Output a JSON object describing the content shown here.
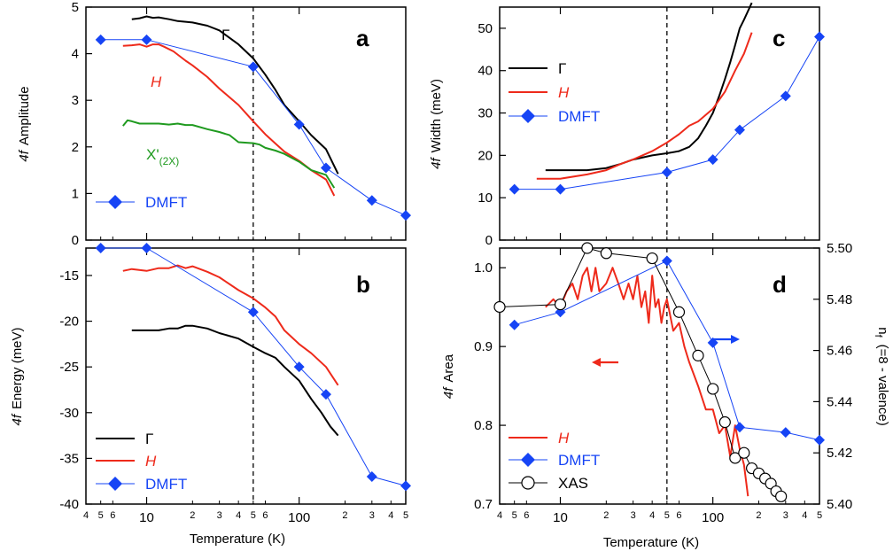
{
  "colors": {
    "black": "#000000",
    "red": "#ee2a1b",
    "blue": "#1644f5",
    "green": "#1f9a1f",
    "marker": "#1644f5"
  },
  "x_axis": {
    "label": "Temperature (K)",
    "major_ticks": [
      "10",
      "100"
    ],
    "minor_ticks": [
      "4",
      "5",
      "6",
      "2",
      "3",
      "4",
      "5",
      "6",
      "2",
      "3",
      "4",
      "5"
    ]
  },
  "chart_data": [
    {
      "id": "a",
      "type": "line",
      "panel_label": "a",
      "xscale": "log",
      "xlim": [
        4,
        500
      ],
      "ylabel_italic": "4f",
      "ylabel": "Amplitude",
      "ylim": [
        0,
        5
      ],
      "yticks": [
        "0",
        "1",
        "2",
        "3",
        "4",
        "5"
      ],
      "vline_x": 50,
      "series": [
        {
          "name": "Γ",
          "color": "black",
          "x": [
            8,
            9,
            10,
            11,
            12,
            14,
            16,
            20,
            25,
            30,
            40,
            50,
            60,
            70,
            80,
            100,
            120,
            150,
            180
          ],
          "y": [
            4.74,
            4.76,
            4.8,
            4.77,
            4.78,
            4.74,
            4.7,
            4.67,
            4.6,
            4.5,
            4.2,
            3.9,
            3.55,
            3.22,
            2.9,
            2.55,
            2.25,
            1.95,
            1.42
          ]
        },
        {
          "name": "H",
          "color": "red",
          "x": [
            7,
            8,
            9,
            10,
            11,
            12,
            13,
            15,
            18,
            20,
            25,
            30,
            40,
            50,
            60,
            70,
            80,
            100,
            120,
            150,
            170
          ],
          "y": [
            4.17,
            4.18,
            4.2,
            4.15,
            4.2,
            4.2,
            4.15,
            4.05,
            3.85,
            3.75,
            3.5,
            3.25,
            2.9,
            2.55,
            2.27,
            2.07,
            1.9,
            1.7,
            1.5,
            1.3,
            0.95
          ]
        },
        {
          "name": "X'",
          "subscript": "(2X)",
          "color": "green",
          "x": [
            7,
            7.5,
            8,
            9,
            10,
            12,
            14,
            16,
            18,
            20,
            25,
            30,
            35,
            40,
            50,
            55,
            60,
            70,
            80,
            100,
            120,
            150,
            170
          ],
          "y": [
            2.45,
            2.57,
            2.55,
            2.5,
            2.5,
            2.5,
            2.48,
            2.5,
            2.47,
            2.47,
            2.38,
            2.32,
            2.25,
            2.1,
            2.08,
            2.05,
            1.98,
            1.92,
            1.85,
            1.68,
            1.5,
            1.4,
            1.12
          ]
        },
        {
          "name": "DMFT",
          "color": "blue",
          "marker": "diamond",
          "x": [
            5,
            10,
            50,
            100,
            150,
            300,
            500
          ],
          "y": [
            4.3,
            4.3,
            3.72,
            2.48,
            1.55,
            0.85,
            0.53
          ]
        }
      ]
    },
    {
      "id": "b",
      "type": "line",
      "panel_label": "b",
      "xscale": "log",
      "xlim": [
        4,
        500
      ],
      "ylabel_italic": "4f",
      "ylabel": "Energy (meV)",
      "ylim": [
        -40,
        -12
      ],
      "yticks": [
        "-40",
        "-35",
        "-30",
        "-25",
        "-20",
        "-15"
      ],
      "vline_x": 50,
      "series": [
        {
          "name": "Γ",
          "color": "black",
          "x": [
            8,
            10,
            12,
            14,
            16,
            18,
            20,
            25,
            30,
            40,
            50,
            60,
            70,
            80,
            100,
            120,
            140,
            160,
            180
          ],
          "y": [
            -21,
            -21,
            -21,
            -20.8,
            -20.8,
            -20.5,
            -20.5,
            -20.8,
            -21.3,
            -21.9,
            -22.8,
            -23.5,
            -24,
            -25,
            -26.5,
            -28.5,
            -30,
            -31.5,
            -32.5
          ]
        },
        {
          "name": "H",
          "color": "red",
          "x": [
            7,
            8,
            10,
            12,
            14,
            16,
            18,
            20,
            25,
            30,
            40,
            50,
            60,
            70,
            80,
            100,
            120,
            150,
            180
          ],
          "y": [
            -14.5,
            -14.3,
            -14.5,
            -14.2,
            -14.2,
            -13.9,
            -14.2,
            -14,
            -14.6,
            -15.2,
            -16.6,
            -17.5,
            -18.5,
            -19.5,
            -21,
            -22.5,
            -23.5,
            -25,
            -27
          ]
        },
        {
          "name": "DMFT",
          "color": "blue",
          "marker": "diamond",
          "x": [
            5,
            10,
            50,
            100,
            150,
            300,
            500
          ],
          "y": [
            -12,
            -12,
            -19,
            -25,
            -28,
            -37,
            -38
          ]
        }
      ]
    },
    {
      "id": "c",
      "type": "line",
      "panel_label": "c",
      "xscale": "log",
      "xlim": [
        4,
        500
      ],
      "ylabel_italic": "4f",
      "ylabel": "Width (meV)",
      "ylim": [
        0,
        55
      ],
      "yticks": [
        "0",
        "10",
        "20",
        "30",
        "40",
        "50"
      ],
      "vline_x": 50,
      "series": [
        {
          "name": "Γ",
          "color": "black",
          "x": [
            8,
            10,
            15,
            20,
            25,
            30,
            40,
            50,
            60,
            70,
            80,
            90,
            100,
            110,
            120,
            130,
            140,
            150,
            160,
            180
          ],
          "y": [
            16.5,
            16.5,
            16.5,
            17,
            18,
            19,
            20,
            20.5,
            21,
            22,
            24,
            27,
            30,
            34,
            38,
            42,
            46,
            50,
            52,
            56
          ]
        },
        {
          "name": "H",
          "color": "red",
          "x": [
            7,
            10,
            15,
            20,
            25,
            30,
            40,
            50,
            60,
            70,
            80,
            100,
            120,
            140,
            160,
            180
          ],
          "y": [
            14.5,
            14.5,
            15.5,
            16.5,
            18,
            19,
            21,
            23,
            25,
            27,
            28,
            31,
            35,
            40,
            44,
            49
          ]
        },
        {
          "name": "DMFT",
          "color": "blue",
          "marker": "diamond",
          "x": [
            5,
            10,
            50,
            100,
            150,
            300,
            500
          ],
          "y": [
            12,
            12,
            16,
            19,
            26,
            34,
            48
          ]
        }
      ]
    },
    {
      "id": "d",
      "type": "line",
      "panel_label": "d",
      "xscale": "log",
      "xlim": [
        4,
        500
      ],
      "ylabel_italic": "4f",
      "ylabel": "Area",
      "ylim": [
        0.7,
        1.025
      ],
      "yticks": [
        "0.7",
        "0.8",
        "0.9",
        "1.0"
      ],
      "y2label_prefix": "n",
      "y2label_sub": "f",
      "y2label": "(=8 - valence)",
      "y2lim": [
        5.4,
        5.5
      ],
      "y2ticks": [
        "5.40",
        "5.42",
        "5.44",
        "5.46",
        "5.48",
        "5.50"
      ],
      "vline_x": 50,
      "series": [
        {
          "name": "H",
          "color": "red",
          "axis": "left",
          "x": [
            8,
            9,
            10,
            11,
            12,
            13,
            14,
            15,
            16,
            17,
            18,
            20,
            22,
            24,
            26,
            28,
            30,
            32,
            34,
            36,
            38,
            40,
            42,
            44,
            46,
            48,
            50,
            55,
            60,
            65,
            70,
            80,
            90,
            100,
            110,
            120,
            130,
            140,
            150,
            160,
            170
          ],
          "y": [
            0.95,
            0.96,
            0.95,
            0.97,
            0.98,
            0.96,
            0.99,
            1.0,
            0.97,
            1.0,
            0.97,
            0.98,
            1.0,
            0.98,
            0.96,
            0.98,
            0.96,
            0.99,
            0.95,
            0.97,
            0.93,
            0.99,
            0.95,
            0.96,
            0.93,
            0.95,
            0.96,
            0.92,
            0.93,
            0.9,
            0.88,
            0.85,
            0.82,
            0.82,
            0.79,
            0.8,
            0.76,
            0.8,
            0.77,
            0.75,
            0.71
          ]
        },
        {
          "name": "DMFT",
          "color": "blue",
          "marker": "diamond",
          "axis": "right",
          "x": [
            5,
            10,
            50,
            100,
            150,
            300,
            500
          ],
          "y": [
            5.47,
            5.475,
            5.495,
            5.463,
            5.43,
            5.428,
            5.425
          ]
        },
        {
          "name": "XAS",
          "color": "black",
          "marker": "circle",
          "axis": "right",
          "x": [
            4,
            10,
            15,
            20,
            40,
            60,
            80,
            100,
            120,
            140,
            160,
            180,
            200,
            220,
            240,
            260,
            280
          ],
          "y": [
            5.477,
            5.478,
            5.5,
            5.498,
            5.496,
            5.475,
            5.458,
            5.445,
            5.432,
            5.418,
            5.42,
            5.414,
            5.412,
            5.41,
            5.408,
            5.405,
            5.403
          ]
        }
      ]
    }
  ],
  "legends": {
    "a": [
      {
        "label": "Γ",
        "series": "Γ"
      },
      {
        "label": "H",
        "series": "H"
      },
      {
        "label": "X'",
        "sub": "(2X)",
        "series": "X'"
      },
      {
        "label": "DMFT",
        "series": "DMFT"
      }
    ],
    "b": [
      {
        "label": "Γ"
      },
      {
        "label": "H"
      },
      {
        "label": "DMFT"
      }
    ],
    "c": [
      {
        "label": "Γ"
      },
      {
        "label": "H"
      },
      {
        "label": "DMFT"
      }
    ],
    "d": [
      {
        "label": "H"
      },
      {
        "label": "DMFT"
      },
      {
        "label": "XAS"
      }
    ]
  }
}
